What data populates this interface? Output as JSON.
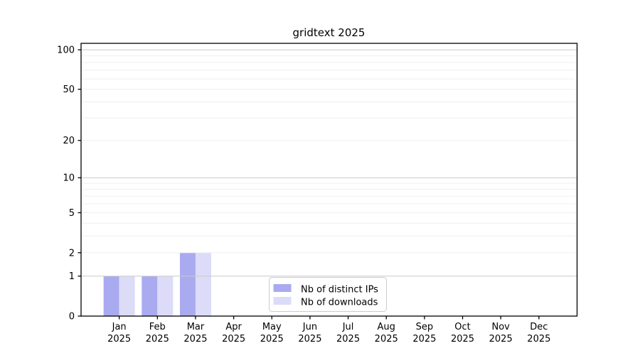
{
  "chart_data": {
    "type": "bar",
    "title": "gridtext 2025",
    "categories": [
      "Jan",
      "Feb",
      "Mar",
      "Apr",
      "May",
      "Jun",
      "Jul",
      "Aug",
      "Sep",
      "Oct",
      "Nov",
      "Dec"
    ],
    "category_year": "2025",
    "series": [
      {
        "name": "Nb of distinct IPs",
        "color": "#aaaaf0",
        "values": [
          1,
          1,
          2,
          0,
          0,
          0,
          0,
          0,
          0,
          0,
          0,
          0
        ]
      },
      {
        "name": "Nb of downloads",
        "color": "#dcdcf8",
        "values": [
          1,
          1,
          2,
          0,
          0,
          0,
          0,
          0,
          0,
          0,
          0,
          0
        ]
      }
    ],
    "y_axis": {
      "scale": "log10(1+x)",
      "tick_values": [
        0,
        1,
        2,
        5,
        10,
        20,
        50,
        100
      ],
      "major_gridline_values": [
        1,
        10,
        100
      ],
      "minor_gridline_values": [
        2,
        3,
        4,
        5,
        6,
        7,
        8,
        9,
        20,
        30,
        40,
        50,
        60,
        70,
        80,
        90
      ],
      "ylim": [
        0,
        112
      ]
    },
    "legend": {
      "position": "lower-center",
      "entries": [
        "Nb of distinct IPs",
        "Nb of downloads"
      ]
    },
    "colors": {
      "major_grid": "#c9c9c9",
      "minor_grid": "#efefef",
      "axis": "#000000",
      "legend_border": "#cccccc",
      "text": "#000000"
    }
  }
}
